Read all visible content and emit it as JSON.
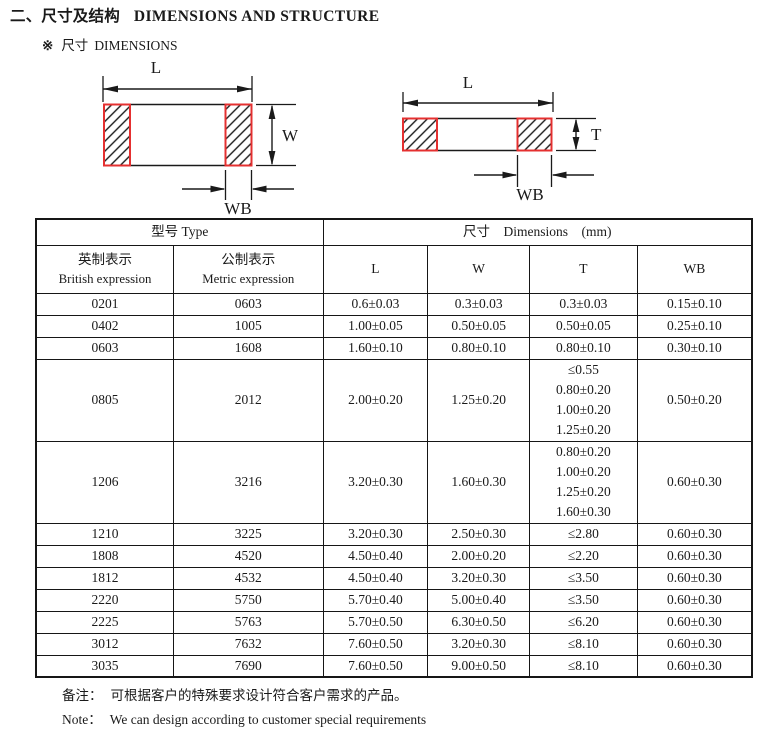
{
  "page": {
    "title_zh": "二、尺寸及结构",
    "title_en": "DIMENSIONS AND STRUCTURE",
    "section_marker": "※",
    "section_zh": "尺寸",
    "section_en": "DIMENSIONS"
  },
  "diagrams": {
    "top_view": {
      "l": "L",
      "w": "W",
      "wb": "WB"
    },
    "side_view": {
      "l": "L",
      "t": "T",
      "wb": "WB"
    }
  },
  "table": {
    "header": {
      "type_group": "型号 Type",
      "dimensions_group": "尺寸　Dimensions　(mm)",
      "col_british_zh": "英制表示",
      "col_british_en": "British expression",
      "col_metric_zh": "公制表示",
      "col_metric_en": "Metric expression",
      "col_l": "L",
      "col_w": "W",
      "col_t": "T",
      "col_wb": "WB"
    },
    "rows": [
      {
        "british": "0201",
        "metric": "0603",
        "l": "0.6±0.03",
        "w": "0.3±0.03",
        "t": [
          "0.3±0.03"
        ],
        "wb": "0.15±0.10"
      },
      {
        "british": "0402",
        "metric": "1005",
        "l": "1.00±0.05",
        "w": "0.50±0.05",
        "t": [
          "0.50±0.05"
        ],
        "wb": "0.25±0.10"
      },
      {
        "british": "0603",
        "metric": "1608",
        "l": "1.60±0.10",
        "w": "0.80±0.10",
        "t": [
          "0.80±0.10"
        ],
        "wb": "0.30±0.10"
      },
      {
        "british": "0805",
        "metric": "2012",
        "l": "2.00±0.20",
        "w": "1.25±0.20",
        "t": [
          "≤0.55",
          "0.80±0.20",
          "1.00±0.20",
          "1.25±0.20"
        ],
        "wb": "0.50±0.20"
      },
      {
        "british": "1206",
        "metric": "3216",
        "l": "3.20±0.30",
        "w": "1.60±0.30",
        "t": [
          "0.80±0.20",
          "1.00±0.20",
          "1.25±0.20",
          "1.60±0.30"
        ],
        "wb": "0.60±0.30"
      },
      {
        "british": "1210",
        "metric": "3225",
        "l": "3.20±0.30",
        "w": "2.50±0.30",
        "t": [
          "≤2.80"
        ],
        "wb": "0.60±0.30"
      },
      {
        "british": "1808",
        "metric": "4520",
        "l": "4.50±0.40",
        "w": "2.00±0.20",
        "t": [
          "≤2.20"
        ],
        "wb": "0.60±0.30"
      },
      {
        "british": "1812",
        "metric": "4532",
        "l": "4.50±0.40",
        "w": "3.20±0.30",
        "t": [
          "≤3.50"
        ],
        "wb": "0.60±0.30"
      },
      {
        "british": "2220",
        "metric": "5750",
        "l": "5.70±0.40",
        "w": "5.00±0.40",
        "t": [
          "≤3.50"
        ],
        "wb": "0.60±0.30"
      },
      {
        "british": "2225",
        "metric": "5763",
        "l": "5.70±0.50",
        "w": "6.30±0.50",
        "t": [
          "≤6.20"
        ],
        "wb": "0.60±0.30"
      },
      {
        "british": "3012",
        "metric": "7632",
        "l": "7.60±0.50",
        "w": "3.20±0.30",
        "t": [
          "≤8.10"
        ],
        "wb": "0.60±0.30"
      },
      {
        "british": "3035",
        "metric": "7690",
        "l": "7.60±0.50",
        "w": "9.00±0.50",
        "t": [
          "≤8.10"
        ],
        "wb": "0.60±0.30"
      }
    ]
  },
  "notes": {
    "zh_label": "备注：",
    "zh_text": "可根据客户的特殊要求设计符合客户需求的产品。",
    "en_label": "Note：",
    "en_text": "We can design according to customer special requirements"
  },
  "colors": {
    "terminal_border": "#e53030",
    "ink": "#1a1a1a"
  }
}
